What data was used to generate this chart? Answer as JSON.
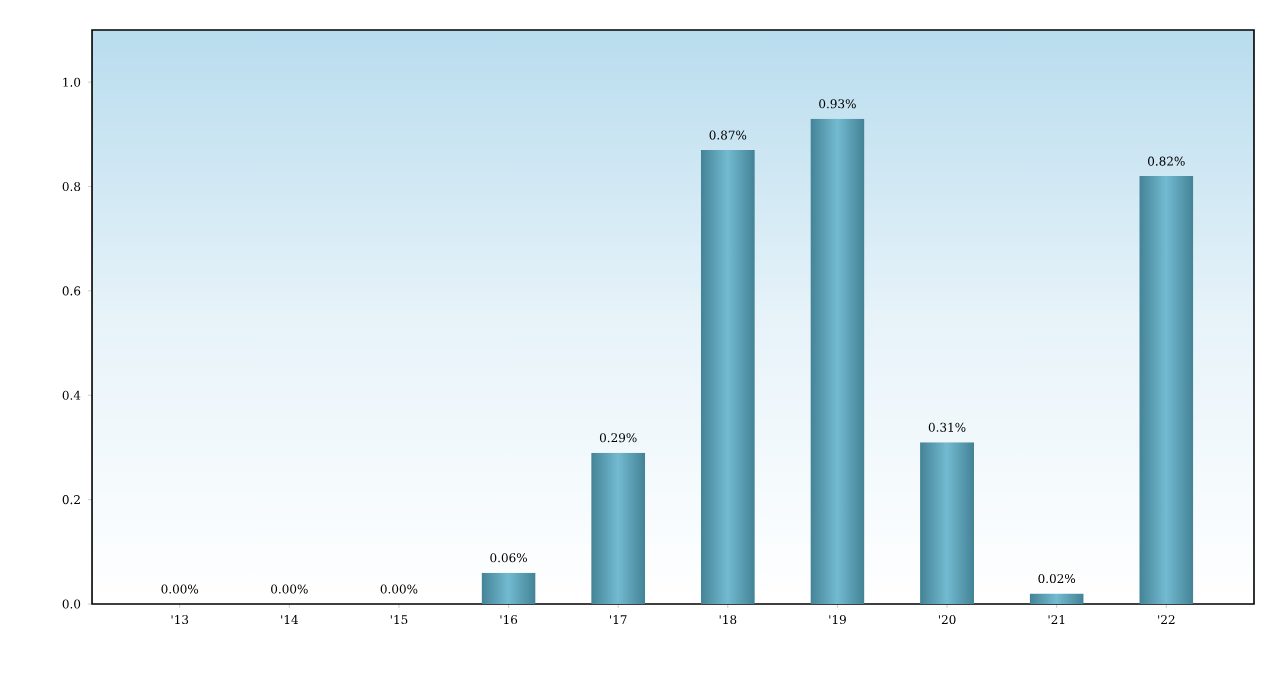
{
  "chart_data": {
    "type": "bar",
    "categories": [
      "'13",
      "'14",
      "'15",
      "'16",
      "'17",
      "'18",
      "'19",
      "'20",
      "'21",
      "'22"
    ],
    "values": [
      0.0,
      0.0,
      0.0,
      0.06,
      0.29,
      0.87,
      0.93,
      0.31,
      0.02,
      0.82
    ],
    "value_labels": [
      "0.00%",
      "0.00%",
      "0.00%",
      "0.06%",
      "0.29%",
      "0.87%",
      "0.93%",
      "0.31%",
      "0.02%",
      "0.82%"
    ],
    "color": "#5aaec8",
    "ylim": [
      0,
      1.1
    ],
    "yticks": [
      {
        "value": 0,
        "label": "0.0"
      },
      0.2,
      0.4,
      0.6,
      0.8,
      {
        "value": 1,
        "label": "1.0"
      }
    ],
    "grid": false
  }
}
